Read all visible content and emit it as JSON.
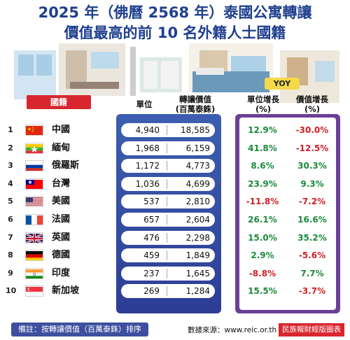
{
  "title_line1": "2025 年（佛曆 2568 年）泰國公寓轉讓",
  "title_line2": "價值最高的前 10 名外籍人士國籍",
  "headers": {
    "country": "國籍",
    "units": "單位",
    "value_line1": "轉讓價值",
    "value_line2": "(百萬泰銖)",
    "yoy": "YOY",
    "unit_growth_line1": "單位增長",
    "unit_growth_line2": "(%)",
    "value_growth_line1": "價值增長",
    "value_growth_line2": "(%)"
  },
  "colors": {
    "positive": "#1a8a3a",
    "negative": "#d01f26",
    "brand_blue": "#1f3f8f",
    "brand_red": "#d8262e"
  },
  "chart_data": {
    "type": "table",
    "columns": [
      "國籍",
      "單位",
      "轉讓價值(百萬泰銖)",
      "單位增長(%)",
      "價值增長(%)"
    ],
    "rows": [
      {
        "rank": "1",
        "country": "中國",
        "flag": "china-flag",
        "units": "4,940",
        "value": "18,585",
        "unit_growth": "12.9%",
        "value_growth": "-30.0%"
      },
      {
        "rank": "2",
        "country": "緬甸",
        "flag": "myanmar-flag",
        "units": "1,968",
        "value": "6,159",
        "unit_growth": "41.8%",
        "value_growth": "-12.5%"
      },
      {
        "rank": "3",
        "country": "俄羅斯",
        "flag": "russia-flag",
        "units": "1,172",
        "value": "4,773",
        "unit_growth": "8.6%",
        "value_growth": "30.3%"
      },
      {
        "rank": "4",
        "country": "台灣",
        "flag": "taiwan-flag",
        "units": "1,036",
        "value": "4,699",
        "unit_growth": "23.9%",
        "value_growth": "9.3%"
      },
      {
        "rank": "5",
        "country": "美國",
        "flag": "usa-flag",
        "units": "537",
        "value": "2,810",
        "unit_growth": "-11.8%",
        "value_growth": "-7.2%"
      },
      {
        "rank": "6",
        "country": "法國",
        "flag": "france-flag",
        "units": "657",
        "value": "2,604",
        "unit_growth": "26.1%",
        "value_growth": "16.6%"
      },
      {
        "rank": "7",
        "country": "英國",
        "flag": "uk-flag",
        "units": "476",
        "value": "2,298",
        "unit_growth": "15.0%",
        "value_growth": "35.2%"
      },
      {
        "rank": "8",
        "country": "德國",
        "flag": "germany-flag",
        "units": "459",
        "value": "1,849",
        "unit_growth": "2.9%",
        "value_growth": "-5.6%"
      },
      {
        "rank": "9",
        "country": "印度",
        "flag": "india-flag",
        "units": "237",
        "value": "1,645",
        "unit_growth": "-8.8%",
        "value_growth": "7.7%"
      },
      {
        "rank": "10",
        "country": "新加坡",
        "flag": "singapore-flag",
        "units": "269",
        "value": "1,284",
        "unit_growth": "15.5%",
        "value_growth": "-3.7%"
      }
    ]
  },
  "footer": {
    "note": "備註：按轉讓價值（百萬泰銖）排序",
    "source": "數據來源：www.reic.or.th",
    "credit": "民族報財經版圖表"
  }
}
